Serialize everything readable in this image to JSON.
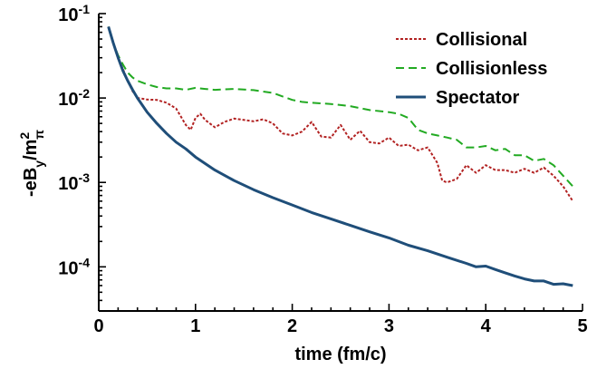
{
  "chart_data": {
    "type": "line",
    "xlabel": "time (fm/c)",
    "ylabel": "-eB_y/m_π^2",
    "xlim": [
      0,
      5
    ],
    "ylim": [
      3e-05,
      0.1
    ],
    "yscale": "log",
    "grid": false,
    "legend_position": "top-right",
    "x_ticks": [
      {
        "value": 0,
        "label": "0"
      },
      {
        "value": 1,
        "label": "1"
      },
      {
        "value": 2,
        "label": "2"
      },
      {
        "value": 3,
        "label": "3"
      },
      {
        "value": 4,
        "label": "4"
      },
      {
        "value": 5,
        "label": "5"
      }
    ],
    "y_ticks": [
      {
        "value": 0.1,
        "base": "10",
        "exp": "-1"
      },
      {
        "value": 0.01,
        "base": "10",
        "exp": "-2"
      },
      {
        "value": 0.001,
        "base": "10",
        "exp": "-3"
      },
      {
        "value": 0.0001,
        "base": "10",
        "exp": "-4"
      }
    ],
    "series": [
      {
        "name": "Collisional",
        "color": "#b22222",
        "style": "dotted",
        "x": [
          0.1,
          0.15,
          0.2,
          0.25,
          0.3,
          0.35,
          0.4,
          0.45,
          0.5,
          0.6,
          0.7,
          0.8,
          0.85,
          0.9,
          0.95,
          1.0,
          1.05,
          1.1,
          1.2,
          1.3,
          1.4,
          1.5,
          1.6,
          1.7,
          1.8,
          1.9,
          2.0,
          2.1,
          2.2,
          2.3,
          2.4,
          2.5,
          2.6,
          2.7,
          2.8,
          2.9,
          3.0,
          3.1,
          3.2,
          3.3,
          3.4,
          3.5,
          3.55,
          3.6,
          3.7,
          3.8,
          3.9,
          4.0,
          4.1,
          4.2,
          4.3,
          4.4,
          4.5,
          4.6,
          4.7,
          4.8,
          4.9
        ],
        "y": [
          0.07,
          0.045,
          0.03,
          0.022,
          0.016,
          0.012,
          0.01,
          0.0098,
          0.0096,
          0.0095,
          0.0088,
          0.0075,
          0.006,
          0.0048,
          0.0042,
          0.0058,
          0.0065,
          0.0055,
          0.0045,
          0.0052,
          0.0057,
          0.0055,
          0.0053,
          0.0056,
          0.005,
          0.0038,
          0.0036,
          0.004,
          0.0052,
          0.0035,
          0.0034,
          0.0048,
          0.0032,
          0.0041,
          0.003,
          0.0029,
          0.0034,
          0.0027,
          0.0028,
          0.0024,
          0.0026,
          0.0017,
          0.00105,
          0.001,
          0.0011,
          0.0016,
          0.0013,
          0.0016,
          0.0014,
          0.0014,
          0.0013,
          0.00145,
          0.0013,
          0.0015,
          0.0012,
          0.0009,
          0.0006
        ]
      },
      {
        "name": "Collisionless",
        "color": "#22aa22",
        "style": "dashed",
        "x": [
          0.1,
          0.15,
          0.2,
          0.25,
          0.3,
          0.35,
          0.4,
          0.5,
          0.6,
          0.7,
          0.8,
          0.9,
          1.0,
          1.1,
          1.2,
          1.4,
          1.6,
          1.8,
          2.0,
          2.1,
          2.2,
          2.4,
          2.6,
          2.8,
          3.0,
          3.1,
          3.2,
          3.3,
          3.4,
          3.5,
          3.6,
          3.7,
          3.8,
          3.9,
          4.0,
          4.1,
          4.2,
          4.3,
          4.4,
          4.5,
          4.6,
          4.7,
          4.8,
          4.9
        ],
        "y": [
          0.07,
          0.045,
          0.032,
          0.025,
          0.02,
          0.0175,
          0.016,
          0.0145,
          0.0135,
          0.013,
          0.013,
          0.0125,
          0.0132,
          0.0128,
          0.0125,
          0.0128,
          0.0124,
          0.0115,
          0.0095,
          0.009,
          0.0088,
          0.0085,
          0.008,
          0.0072,
          0.0068,
          0.0065,
          0.0058,
          0.0042,
          0.0038,
          0.0036,
          0.0034,
          0.0032,
          0.0026,
          0.0026,
          0.0027,
          0.0024,
          0.0025,
          0.0021,
          0.0021,
          0.0018,
          0.0019,
          0.0016,
          0.0012,
          0.0009
        ]
      },
      {
        "name": "Spectator",
        "color": "#1f4e79",
        "style": "solid",
        "x": [
          0.1,
          0.15,
          0.2,
          0.25,
          0.3,
          0.35,
          0.4,
          0.5,
          0.6,
          0.7,
          0.8,
          0.9,
          1.0,
          1.2,
          1.4,
          1.6,
          1.8,
          2.0,
          2.2,
          2.4,
          2.6,
          2.8,
          3.0,
          3.2,
          3.4,
          3.6,
          3.8,
          3.9,
          4.0,
          4.1,
          4.2,
          4.3,
          4.4,
          4.5,
          4.6,
          4.7,
          4.8,
          4.9
        ],
        "y": [
          0.07,
          0.045,
          0.03,
          0.021,
          0.016,
          0.0125,
          0.01,
          0.0068,
          0.005,
          0.0038,
          0.003,
          0.0025,
          0.002,
          0.0014,
          0.00105,
          0.00082,
          0.00066,
          0.00054,
          0.00044,
          0.00037,
          0.00031,
          0.00026,
          0.00022,
          0.00018,
          0.000155,
          0.00013,
          0.00011,
          0.0001,
          0.000102,
          9.3e-05,
          8.5e-05,
          7.8e-05,
          7.2e-05,
          6.8e-05,
          6.8e-05,
          6.2e-05,
          6.3e-05,
          6e-05
        ]
      }
    ]
  }
}
